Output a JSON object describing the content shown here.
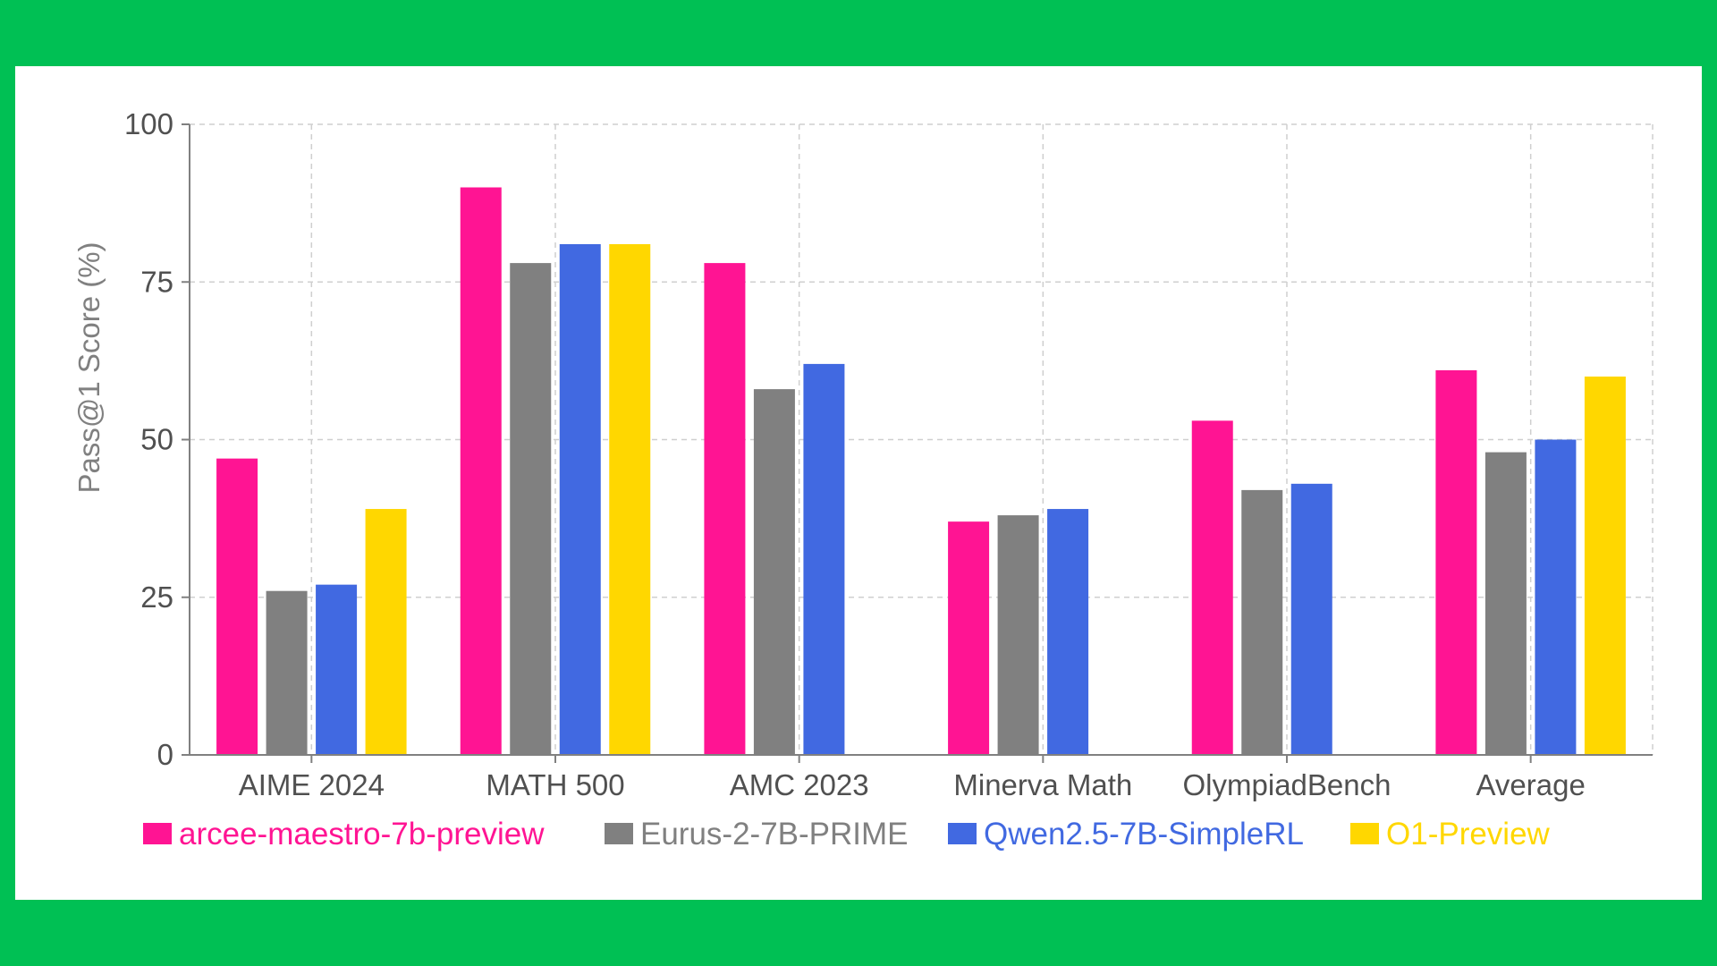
{
  "chart_data": {
    "type": "bar",
    "title": "",
    "xlabel": "",
    "ylabel": "Pass@1 Score (%)",
    "ylim": [
      0,
      100
    ],
    "yticks": [
      0,
      25,
      50,
      75,
      100
    ],
    "grid": true,
    "legend_position": "bottom",
    "categories": [
      "AIME 2024",
      "MATH 500",
      "AMC 2023",
      "Minerva Math",
      "OlympiadBench",
      "Average"
    ],
    "series": [
      {
        "name": "arcee-maestro-7b-preview",
        "color": "#FF1493",
        "values": [
          47,
          90,
          78,
          37,
          53,
          61
        ]
      },
      {
        "name": "Eurus-2-7B-PRIME",
        "color": "#808080",
        "values": [
          26,
          78,
          58,
          38,
          42,
          48
        ]
      },
      {
        "name": "Qwen2.5-7B-SimpleRL",
        "color": "#4169E1",
        "values": [
          27,
          81,
          62,
          39,
          43,
          50
        ]
      },
      {
        "name": "O1-Preview",
        "color": "#FFD700",
        "values": [
          39,
          81,
          null,
          null,
          null,
          60
        ]
      }
    ]
  }
}
